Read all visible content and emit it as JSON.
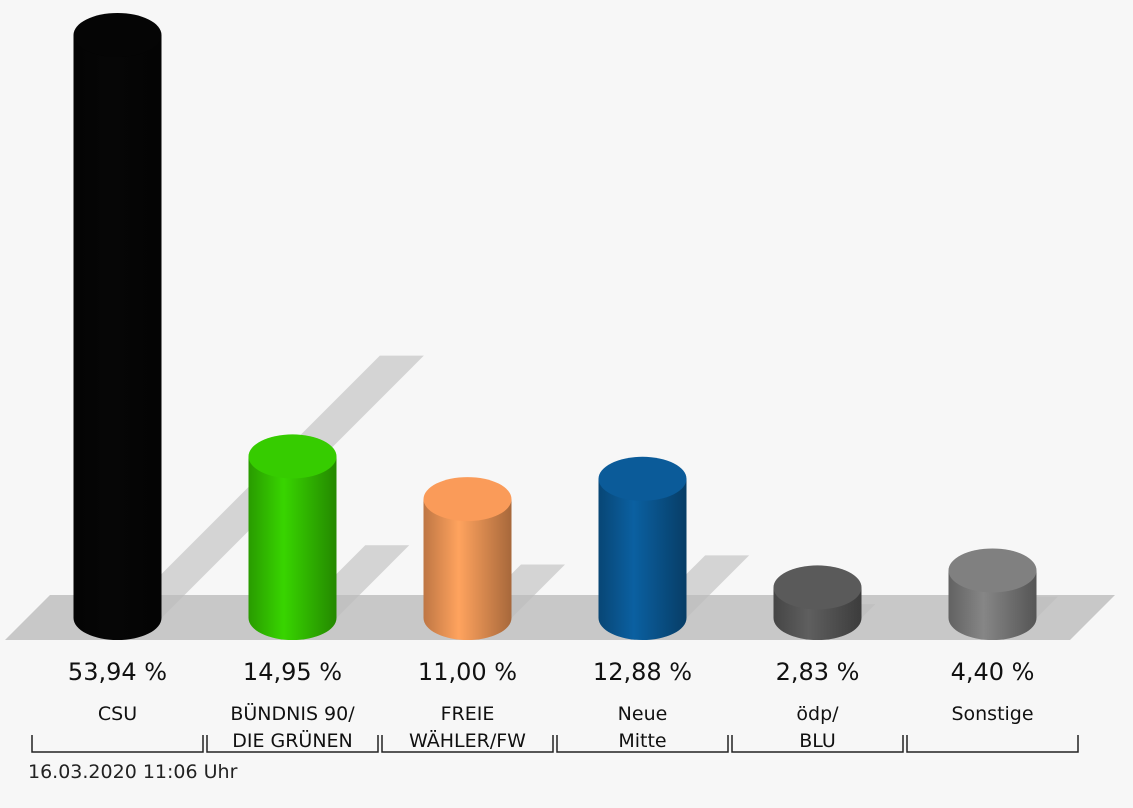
{
  "chart_data": {
    "type": "bar3d",
    "categories": [
      "CSU",
      "BÜNDNIS 90/\nDIE GRÜNEN",
      "FREIE\nWÄHLER/FW",
      "Neue\nMitte",
      "ödp/\nBLU",
      "Sonstige"
    ],
    "values": [
      53.94,
      14.95,
      11.0,
      12.88,
      2.83,
      4.4
    ],
    "value_labels": [
      "53,94 %",
      "14,95 %",
      "11,00 %",
      "12,88 %",
      "2,83 %",
      "4,40 %"
    ],
    "colors": [
      "#050505",
      "#33c200",
      "#ee9455",
      "#0a5792",
      "#565656",
      "#7a7a7a"
    ],
    "note": "16.03.2020 11:06 Uhr"
  }
}
